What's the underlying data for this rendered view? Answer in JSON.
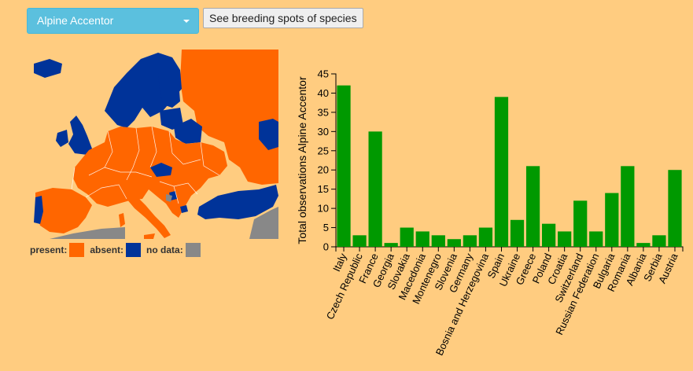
{
  "species_select": {
    "selected": "Alpine Accentor"
  },
  "breeding_button": {
    "label": "See breeding spots of species"
  },
  "legend": {
    "present": {
      "label": "present:",
      "color": "#ff6600"
    },
    "absent": {
      "label": "absent:",
      "color": "#003399"
    },
    "no_data": {
      "label": "no data:",
      "color": "#888888"
    }
  },
  "colors": {
    "background": "#ffcc80",
    "bar": "#009900",
    "map_neutral": "#ffcc80"
  },
  "chart_data": {
    "type": "bar",
    "ylabel": "Total observations Alpine Accentor",
    "xlabel": "",
    "ylim": [
      0,
      45
    ],
    "yticks": [
      0,
      5,
      10,
      15,
      20,
      25,
      30,
      35,
      40,
      45
    ],
    "categories": [
      "Italy",
      "Czech Republic",
      "France",
      "Georgia",
      "Slovakia",
      "Macedonia",
      "Montenegro",
      "Slovenia",
      "Germany",
      "Bosnia and Herzegovina",
      "Spain",
      "Ukraine",
      "Greece",
      "Poland",
      "Croatia",
      "Switzerland",
      "Russian Federation",
      "Bulgaria",
      "Romania",
      "Albania",
      "Serbia",
      "Austria"
    ],
    "values": [
      42,
      3,
      30,
      1,
      5,
      4,
      3,
      2,
      3,
      5,
      39,
      7,
      21,
      6,
      4,
      12,
      4,
      14,
      21,
      1,
      3,
      20
    ]
  }
}
